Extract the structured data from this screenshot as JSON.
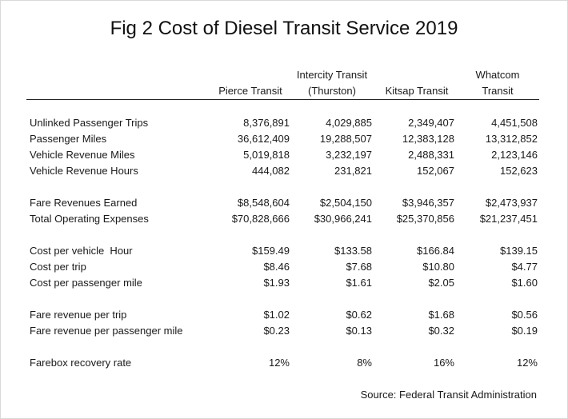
{
  "title": "Fig 2 Cost of Diesel Transit Service 2019",
  "columns": [
    {
      "line1": "",
      "line2": "Pierce Transit"
    },
    {
      "line1": "Intercity Transit",
      "line2": "(Thurston)"
    },
    {
      "line1": "",
      "line2": "Kitsap Transit"
    },
    {
      "line1": "Whatcom",
      "line2": "Transit"
    }
  ],
  "rows": [
    {
      "label": "Unlinked Passenger Trips",
      "values": [
        "8,376,891",
        "4,029,885",
        "2,349,407",
        "4,451,508"
      ]
    },
    {
      "label": "Passenger Miles",
      "values": [
        "36,612,409",
        "19,288,507",
        "12,383,128",
        "13,312,852"
      ]
    },
    {
      "label": "Vehicle Revenue Miles",
      "values": [
        "5,019,818",
        "3,232,197",
        "2,488,331",
        "2,123,146"
      ]
    },
    {
      "label": "Vehicle Revenue Hours",
      "values": [
        "444,082",
        "231,821",
        "152,067",
        "152,623"
      ]
    },
    {
      "label": "Fare Revenues Earned",
      "values": [
        "$8,548,604",
        "$2,504,150",
        "$3,946,357",
        "$2,473,937"
      ]
    },
    {
      "label": "Total Operating Expenses",
      "values": [
        "$70,828,666",
        "$30,966,241",
        "$25,370,856",
        "$21,237,451"
      ]
    },
    {
      "label": "Cost per vehicle  Hour",
      "values": [
        "$159.49",
        "$133.58",
        "$166.84",
        "$139.15"
      ]
    },
    {
      "label": "Cost per trip",
      "values": [
        "$8.46",
        "$7.68",
        "$10.80",
        "$4.77"
      ]
    },
    {
      "label": "Cost per passenger mile",
      "values": [
        "$1.93",
        "$1.61",
        "$2.05",
        "$1.60"
      ]
    },
    {
      "label": "Fare revenue per trip",
      "values": [
        "$1.02",
        "$0.62",
        "$1.68",
        "$0.56"
      ]
    },
    {
      "label": "Fare revenue per passenger mile",
      "values": [
        "$0.23",
        "$0.13",
        "$0.32",
        "$0.19"
      ]
    },
    {
      "label": "Farebox recovery rate",
      "values": [
        "12%",
        "8%",
        "16%",
        "12%"
      ]
    }
  ],
  "source": "Source: Federal Transit Administration"
}
